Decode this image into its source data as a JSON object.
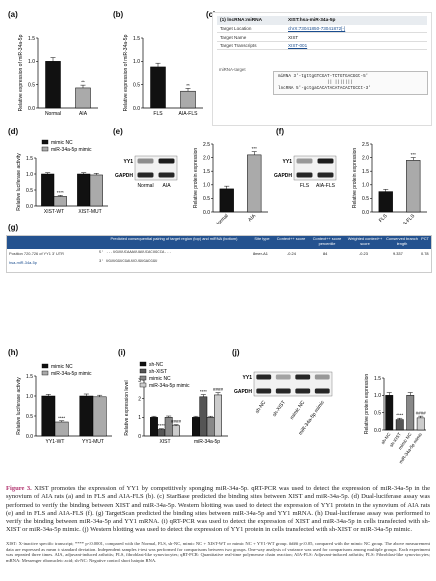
{
  "panels": {
    "a": {
      "label": "(a)",
      "ylabel": "Relative expression of miR-34a-5p",
      "categories": [
        "Normal",
        "AIA"
      ],
      "values": [
        1.0,
        0.43
      ],
      "errors": [
        0.08,
        0.06
      ],
      "sig": [
        "",
        "**"
      ],
      "colors": [
        "#111111",
        "#aaaaaa"
      ],
      "ymax": 1.5,
      "yticks": [
        "0.0",
        "0.5",
        "1.0",
        "1.5"
      ]
    },
    "b": {
      "label": "(b)",
      "ylabel": "Relative expression of miR-34a-5p",
      "categories": [
        "FLS",
        "AIA-FLS"
      ],
      "values": [
        0.88,
        0.36
      ],
      "errors": [
        0.08,
        0.06
      ],
      "sig": [
        "",
        "**"
      ],
      "colors": [
        "#111111",
        "#aaaaaa"
      ],
      "ymax": 1.5,
      "yticks": [
        "0.0",
        "0.5",
        "1.0",
        "1.5"
      ]
    },
    "c": {
      "label": "(c)",
      "header_key": "(1) lncRNA:miRNA",
      "header_val": "XIST:hsa-miR-34a-5p",
      "rows": [
        {
          "k": "Target Location",
          "v": "chrX:73041850-73041872[-]",
          "link": true
        },
        {
          "k": "Target Name",
          "v": "XIST",
          "link": false
        },
        {
          "k": "Target Transcripts",
          "v": "XIST-001",
          "link": true
        }
      ],
      "seq_title": "miRNA-target",
      "seq_line1": "miRNA 3'-tgttgGTCGAT-TCTGTGACGGt-5'",
      "seq_line2": "                   || |||||||",
      "seq_line3": "lncRNA 5'-gctgaCACATACATACACTGCCt-3'"
    },
    "d": {
      "label": "(d)",
      "ylabel": "Relative luciferase activity",
      "legend": [
        "mimic NC",
        "miR-34a-5p mimic"
      ],
      "groups": [
        "XIST-WT",
        "XIST-MUT"
      ],
      "values": [
        [
          1.0,
          0.3
        ],
        [
          1.0,
          0.97
        ]
      ],
      "errors": [
        [
          0.04,
          0.03
        ],
        [
          0.04,
          0.05
        ]
      ],
      "sig": [
        [
          "",
          "****"
        ],
        [
          "",
          ""
        ]
      ],
      "colors": [
        "#111111",
        "#aaaaaa"
      ],
      "ymax": 1.5,
      "yticks": [
        "0.0",
        "0.5",
        "1.0",
        "1.5"
      ]
    },
    "e": {
      "label": "(e)",
      "ylabel": "Relative protein expression",
      "blot_labels": [
        "YY1",
        "GAPDH"
      ],
      "categories": [
        "Normal",
        "AIA"
      ],
      "values": [
        0.85,
        2.1
      ],
      "errors": [
        0.1,
        0.12
      ],
      "sig": [
        "",
        "***"
      ],
      "colors": [
        "#111111",
        "#aaaaaa"
      ],
      "ymax": 2.5,
      "yticks": [
        "0.0",
        "0.5",
        "1.0",
        "1.5",
        "2.0",
        "2.5"
      ],
      "blot_cats": [
        "Normal",
        "AIA"
      ]
    },
    "f": {
      "label": "(f)",
      "ylabel": "Relative protein expression",
      "blot_labels": [
        "YY1",
        "GAPDH"
      ],
      "categories": [
        "FLS",
        "AIA-FLS"
      ],
      "values": [
        0.75,
        1.9
      ],
      "errors": [
        0.08,
        0.1
      ],
      "sig": [
        "",
        "***"
      ],
      "colors": [
        "#111111",
        "#aaaaaa"
      ],
      "ymax": 2.5,
      "yticks": [
        "0.0",
        "0.5",
        "1.0",
        "1.5",
        "2.0",
        "2.5"
      ],
      "blot_cats": [
        "FLS",
        "AIA-FLS"
      ]
    },
    "g": {
      "label": "(g)",
      "headers": [
        "Predicted consequential pairing of target region (top) and miRNA (bottom)",
        "Site type",
        "Context++ score",
        "Context++ score percentile",
        "Weighted context++ score",
        "Conserved branch length",
        "PCT"
      ],
      "row1": [
        "Position 720-726 of YY1 3' UTR",
        "5' ...UGUUUCAAAUUAUUCACUGCCA...",
        "8mer-A1",
        "-0.24",
        "84",
        "-0.23",
        "9.337",
        "0.78"
      ],
      "row2": [
        "hsa-miR-34a-5p",
        "3'  UGUUGGUCGAUUCUGUGACGGU",
        "",
        "",
        "",
        "",
        "",
        ""
      ]
    },
    "h": {
      "label": "(h)",
      "ylabel": "Relative luciferase activity",
      "legend": [
        "mimic NC",
        "miR-34a-5p mimic"
      ],
      "groups": [
        "YY1-WT",
        "YY1-MUT"
      ],
      "values": [
        [
          1.0,
          0.35
        ],
        [
          1.0,
          0.98
        ]
      ],
      "errors": [
        [
          0.04,
          0.03
        ],
        [
          0.05,
          0.04
        ]
      ],
      "sig": [
        [
          "",
          "****"
        ],
        [
          "",
          ""
        ]
      ],
      "colors": [
        "#111111",
        "#aaaaaa"
      ],
      "ymax": 1.5,
      "yticks": [
        "0.0",
        "0.5",
        "1.0",
        "1.5"
      ]
    },
    "i": {
      "label": "(i)",
      "ylabel": "Relative expression level",
      "legend": [
        "sh-NC",
        "sh-XIST",
        "mimic NC",
        "miR-34a-5p mimic"
      ],
      "groups": [
        "XIST",
        "miR-34a-5p"
      ],
      "values": [
        [
          1.0,
          0.35,
          1.0,
          0.55
        ],
        [
          1.0,
          2.1,
          1.0,
          2.2
        ]
      ],
      "errors": [
        [
          0.06,
          0.04,
          0.07,
          0.06
        ],
        [
          0.06,
          0.12,
          0.06,
          0.12
        ]
      ],
      "sig": [
        [
          "",
          "****",
          "",
          "####"
        ],
        [
          "",
          "****",
          "",
          "####"
        ]
      ],
      "colors": [
        "#111111",
        "#555555",
        "#888888",
        "#cccccc"
      ],
      "ymax": 3,
      "yticks": [
        "0",
        "1",
        "2",
        "3"
      ]
    },
    "j": {
      "label": "(j)",
      "ylabel": "Relative protein expression",
      "blot_labels": [
        "YY1",
        "GAPDH"
      ],
      "blot_cats": [
        "sh-NC",
        "sh-XIST",
        "mimic NC",
        "miR-34a-5p mimic"
      ],
      "categories": [
        "sh-NC",
        "sh-XIST",
        "mimic NC",
        "miR-34a-5p mimic"
      ],
      "values": [
        1.0,
        0.3,
        1.0,
        0.35
      ],
      "errors": [
        0.08,
        0.04,
        0.08,
        0.05
      ],
      "sig": [
        "",
        "****",
        "",
        "####"
      ],
      "colors": [
        "#111111",
        "#555555",
        "#888888",
        "#cccccc"
      ],
      "ymax": 1.5,
      "yticks": [
        "0.0",
        "0.5",
        "1.0",
        "1.5"
      ]
    }
  },
  "caption": {
    "fig": "Figure 3.",
    "text": " XIST promotes the expression of YY1 by competitively sponging miR-34a-5p. qRT-PCR was used to detect the expression of miR-34a-5p in the synovium of AIA rats (a) and in FLS and AIA-FLS (b). (c) StarBase predicted the binding sites between XIST and miR-34a-5p. (d) Dual-luciferase assay was performed to verify the binding between XIST and miR-34a-5p. Western blotting was used to detect the expression of YY1 protein in the synovium of AIA rats (e) and in FLS and AIA-FLS (f). (g) TargetScan predicted the binding sites between miR-34a-5p and YY1 mRNA. (h) Dual-luciferase assay was performed to verify the binding between miR-34a-5p and YY1 mRNA. (i) qRT-PCR was used to detect the expression of XIST and miR-34a-5p in cells transfected with sh-XIST or miR-34a-5p mimic. (j) Western blotting was used to detect the expression of YY1 protein in cells transfected with sh-XIST or miR-34a-5p mimic.",
    "note": "XIST: X-inactive specific transcript; **** p<0.0001, compared with the Normal, FLS, sh-NC, mimic NC + XIST-WT or mimic NC + YY1-WT group. #### p<0.05, compared with the mimic NC group. The above measurement data are expressed as mean ± standard deviation. Independent samples t-test was performed for comparisons between two groups. One-way analysis of variance was used for comparisons among multiple groups. Each experiment was repeated three times. AIA, adjuvant-induced arthritis; FLS, fibroblast-like synoviocytes; qRT-PCR: Quantitative real-time polymerase chain reaction; AIA-FLS: Adjuvant-induced arthritis; FLS: Fibroblast-like synoviocytes; mRNA: Messenger ribonucleic acid; sh-NC: Negative control short hairpin RNA."
  },
  "chart_data": [
    {
      "type": "bar",
      "panel": "a",
      "ylabel": "Relative expression of miR-34a-5p",
      "categories": [
        "Normal",
        "AIA"
      ],
      "values": [
        1.0,
        0.43
      ],
      "ylim": [
        0,
        1.5
      ]
    },
    {
      "type": "bar",
      "panel": "b",
      "ylabel": "Relative expression of miR-34a-5p",
      "categories": [
        "FLS",
        "AIA-FLS"
      ],
      "values": [
        0.88,
        0.36
      ],
      "ylim": [
        0,
        1.5
      ]
    },
    {
      "type": "bar",
      "panel": "d",
      "ylabel": "Relative luciferase activity",
      "categories": [
        "XIST-WT",
        "XIST-MUT"
      ],
      "series": [
        {
          "name": "mimic NC",
          "values": [
            1.0,
            1.0
          ]
        },
        {
          "name": "miR-34a-5p mimic",
          "values": [
            0.3,
            0.97
          ]
        }
      ],
      "ylim": [
        0,
        1.5
      ]
    },
    {
      "type": "bar",
      "panel": "e",
      "ylabel": "Relative protein expression",
      "categories": [
        "Normal",
        "AIA"
      ],
      "values": [
        0.85,
        2.1
      ],
      "ylim": [
        0,
        2.5
      ]
    },
    {
      "type": "bar",
      "panel": "f",
      "ylabel": "Relative protein expression",
      "categories": [
        "FLS",
        "AIA-FLS"
      ],
      "values": [
        0.75,
        1.9
      ],
      "ylim": [
        0,
        2.5
      ]
    },
    {
      "type": "bar",
      "panel": "h",
      "ylabel": "Relative luciferase activity",
      "categories": [
        "YY1-WT",
        "YY1-MUT"
      ],
      "series": [
        {
          "name": "mimic NC",
          "values": [
            1.0,
            1.0
          ]
        },
        {
          "name": "miR-34a-5p mimic",
          "values": [
            0.35,
            0.98
          ]
        }
      ],
      "ylim": [
        0,
        1.5
      ]
    },
    {
      "type": "bar",
      "panel": "i",
      "ylabel": "Relative expression level",
      "categories": [
        "XIST",
        "miR-34a-5p"
      ],
      "series": [
        {
          "name": "sh-NC",
          "values": [
            1.0,
            1.0
          ]
        },
        {
          "name": "sh-XIST",
          "values": [
            0.35,
            2.1
          ]
        },
        {
          "name": "mimic NC",
          "values": [
            1.0,
            1.0
          ]
        },
        {
          "name": "miR-34a-5p mimic",
          "values": [
            0.55,
            2.2
          ]
        }
      ],
      "ylim": [
        0,
        3
      ]
    },
    {
      "type": "bar",
      "panel": "j",
      "ylabel": "Relative protein expression",
      "categories": [
        "sh-NC",
        "sh-XIST",
        "mimic NC",
        "miR-34a-5p mimic"
      ],
      "values": [
        1.0,
        0.3,
        1.0,
        0.35
      ],
      "ylim": [
        0,
        1.5
      ]
    }
  ]
}
